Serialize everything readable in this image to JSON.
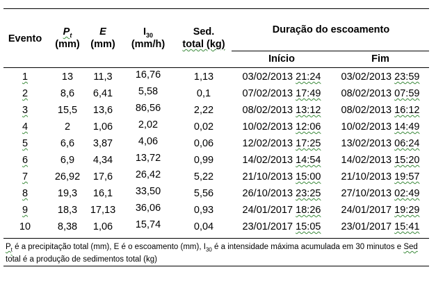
{
  "table": {
    "headers": {
      "evento": "Evento",
      "pt_symbol": "P",
      "pt_sub": "t",
      "pt_unit": "(mm)",
      "e_symbol": "E",
      "e_unit": "(mm)",
      "i30_symbol": "I",
      "i30_sub": "30",
      "i30_unit": "(mm/h)",
      "sed_line1": "Sed.",
      "sed_line2": "total (kg)",
      "duracao": "Duração do escoamento",
      "inicio": "Início",
      "fim": "Fim"
    },
    "rows": [
      {
        "evento": "1",
        "pt": "13",
        "e": "11,3",
        "i30": "16,76",
        "sed": "1,13",
        "inicio_date": "03/02/2013",
        "inicio_time": "21:24",
        "fim_date": "03/02/2013",
        "fim_time": "23:59"
      },
      {
        "evento": "2",
        "pt": "8,6",
        "e": "6,41",
        "i30": "5,58",
        "sed": "0,1",
        "inicio_date": "07/02/2013",
        "inicio_time": "17:49",
        "fim_date": "08/02/2013",
        "fim_time": "07:59"
      },
      {
        "evento": "3",
        "pt": "15,5",
        "e": "13,6",
        "i30": "86,56",
        "sed": "2,22",
        "inicio_date": "08/02/2013",
        "inicio_time": "13:12",
        "fim_date": "08/02/2013",
        "fim_time": "16:12"
      },
      {
        "evento": "4",
        "pt": "2",
        "e": "1,06",
        "i30": "2,02",
        "sed": "0,02",
        "inicio_date": "10/02/2013",
        "inicio_time": "12:06",
        "fim_date": "10/02/2013",
        "fim_time": "14:49"
      },
      {
        "evento": "5",
        "pt": "6,6",
        "e": "3,87",
        "i30": "4,06",
        "sed": "0,06",
        "inicio_date": "12/02/2013",
        "inicio_time": "17:25",
        "fim_date": "13/02/2013",
        "fim_time": "06:24"
      },
      {
        "evento": "6",
        "pt": "6,9",
        "e": "4,34",
        "i30": "13,72",
        "sed": "0,99",
        "inicio_date": "14/02/2013",
        "inicio_time": "14:54",
        "fim_date": "14/02/2013",
        "fim_time": "15:20"
      },
      {
        "evento": "7",
        "pt": "26,92",
        "e": "17,6",
        "i30": "26,42",
        "sed": "5,22",
        "inicio_date": "21/10/2013",
        "inicio_time": "15:00",
        "fim_date": "21/10/2013",
        "fim_time": "19:57"
      },
      {
        "evento": "8",
        "pt": "19,3",
        "e": "16,1",
        "i30": "33,50",
        "sed": "5,56",
        "inicio_date": "26/10/2013",
        "inicio_time": "23:25",
        "fim_date": "27/10/2013",
        "fim_time": "02:49"
      },
      {
        "evento": "9",
        "pt": "18,3",
        "e": "17,13",
        "i30": "36,06",
        "sed": "0,93",
        "inicio_date": "24/01/2017",
        "inicio_time": "18:26",
        "fim_date": "24/01/2017",
        "fim_time": "19:29"
      },
      {
        "evento": "10",
        "pt": "8,38",
        "e": "1,06",
        "i30": "15,74",
        "sed": "0,04",
        "inicio_date": "23/01/2017",
        "inicio_time": "15:05",
        "fim_date": "23/01/2017",
        "fim_time": "15:41"
      }
    ]
  },
  "footnote": {
    "pt_symbol": "P",
    "pt_sub": "t",
    "part1": " é a precipitação total (mm), E é o escoamento (mm), I",
    "i_sub": "30",
    "part2": " é a intensidade máxima acumulada em 30 minutos e ",
    "sed_word": "Sed",
    "part3": " total é a produção de sedimentos total (kg)"
  }
}
